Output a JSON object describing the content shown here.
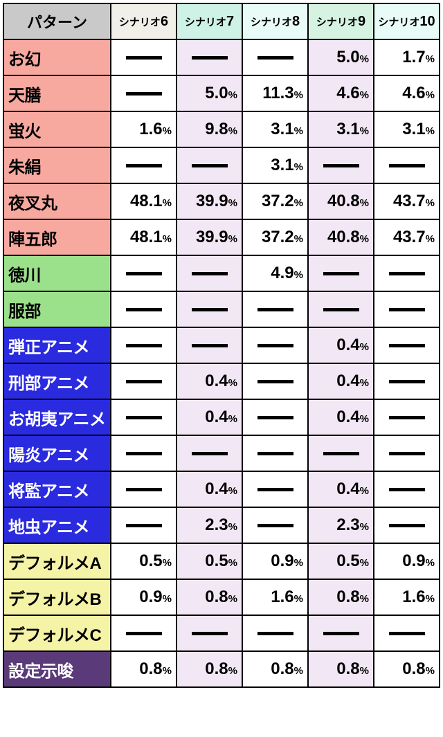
{
  "header": {
    "pattern_label": "パターン",
    "col_prefix": "シナリオ",
    "col_nums": [
      "6",
      "7",
      "8",
      "9",
      "10"
    ],
    "pattern_bg": "#c9c9c9",
    "col_bgs": [
      "#f0f0e8",
      "#cff2e6",
      "#e9fbf7",
      "#d6f3e2",
      "#e9fbf7"
    ]
  },
  "col_bgs": [
    "#ffffff",
    "#ffffff",
    "#ffffff",
    "#ffffff",
    "#ffffff"
  ],
  "rows": [
    {
      "label": "お幻",
      "label_bg": "#f7a9a0",
      "text": "#000000",
      "cells": [
        "—",
        "—",
        "—",
        "5.0",
        "1.7"
      ]
    },
    {
      "label": "天膳",
      "label_bg": "#f7a9a0",
      "text": "#000000",
      "cells": [
        "—",
        "5.0",
        "11.3",
        "4.6",
        "4.6"
      ]
    },
    {
      "label": "蛍火",
      "label_bg": "#f7a9a0",
      "text": "#000000",
      "cells": [
        "1.6",
        "9.8",
        "3.1",
        "3.1",
        "3.1"
      ]
    },
    {
      "label": "朱絹",
      "label_bg": "#f7a9a0",
      "text": "#000000",
      "cells": [
        "—",
        "—",
        "3.1",
        "—",
        "—"
      ]
    },
    {
      "label": "夜叉丸",
      "label_bg": "#f7a9a0",
      "text": "#000000",
      "cells": [
        "48.1",
        "39.9",
        "37.2",
        "40.8",
        "43.7"
      ]
    },
    {
      "label": "陣五郎",
      "label_bg": "#f7a9a0",
      "text": "#000000",
      "cells": [
        "48.1",
        "39.9",
        "37.2",
        "40.8",
        "43.7"
      ]
    },
    {
      "label": "徳川",
      "label_bg": "#9be08a",
      "text": "#000000",
      "cells": [
        "—",
        "—",
        "4.9",
        "—",
        "—"
      ]
    },
    {
      "label": "服部",
      "label_bg": "#9be08a",
      "text": "#000000",
      "cells": [
        "—",
        "—",
        "—",
        "—",
        "—"
      ]
    },
    {
      "label": "弾正アニメ",
      "label_bg": "#2a2adf",
      "text": "#ffffff",
      "cells": [
        "—",
        "—",
        "—",
        "0.4",
        "—"
      ]
    },
    {
      "label": "刑部アニメ",
      "label_bg": "#2a2adf",
      "text": "#ffffff",
      "cells": [
        "—",
        "0.4",
        "—",
        "0.4",
        "—"
      ]
    },
    {
      "label": "お胡夷アニメ",
      "label_bg": "#2a2adf",
      "text": "#ffffff",
      "cells": [
        "—",
        "0.4",
        "—",
        "0.4",
        "—"
      ]
    },
    {
      "label": "陽炎アニメ",
      "label_bg": "#2a2adf",
      "text": "#ffffff",
      "cells": [
        "—",
        "—",
        "—",
        "—",
        "—"
      ]
    },
    {
      "label": "将監アニメ",
      "label_bg": "#2a2adf",
      "text": "#ffffff",
      "cells": [
        "—",
        "0.4",
        "—",
        "0.4",
        "—"
      ]
    },
    {
      "label": "地虫アニメ",
      "label_bg": "#2a2adf",
      "text": "#ffffff",
      "cells": [
        "—",
        "2.3",
        "—",
        "2.3",
        "—"
      ]
    },
    {
      "label": "デフォルメA",
      "label_bg": "#f5f3a6",
      "text": "#000000",
      "cells": [
        "0.5",
        "0.5",
        "0.9",
        "0.5",
        "0.9"
      ]
    },
    {
      "label": "デフォルメB",
      "label_bg": "#f5f3a6",
      "text": "#000000",
      "cells": [
        "0.9",
        "0.8",
        "1.6",
        "0.8",
        "1.6"
      ]
    },
    {
      "label": "デフォルメC",
      "label_bg": "#f5f3a6",
      "text": "#000000",
      "cells": [
        "—",
        "—",
        "—",
        "—",
        "—"
      ]
    },
    {
      "label": "設定示唆",
      "label_bg": "#5a3a78",
      "text": "#ffffff",
      "cells": [
        "0.8",
        "0.8",
        "0.8",
        "0.8",
        "0.8"
      ]
    }
  ],
  "data_cell_bgs": [
    "#ffffff",
    "#f2e8f5",
    "#ffffff",
    "#f2e8f5",
    "#ffffff"
  ]
}
